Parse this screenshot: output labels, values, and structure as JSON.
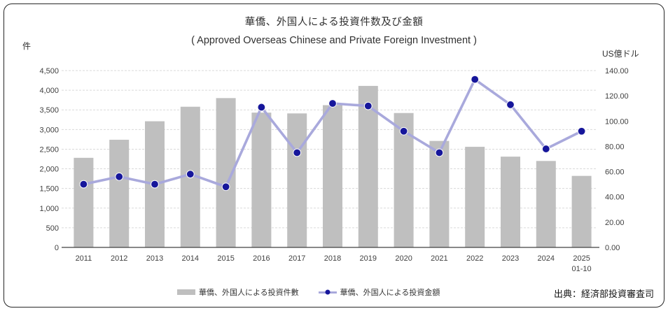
{
  "frame": {
    "title": "華僑、外国人による投資件数及び金額",
    "subtitle": "( Approved Overseas Chinese and Private Foreign Investment )",
    "left_axis_unit": "件",
    "right_axis_unit": "US億ドル",
    "source": "出典：経済部投資審査司"
  },
  "legend": {
    "bars_label": "華僑、外国人による投資件數",
    "line_label": "華僑、外国人による投資金額"
  },
  "colors": {
    "bar": "#BFBFBF",
    "line": "#A9A9DC",
    "marker": "#16169B",
    "marker_halo": "#FAFAFA",
    "grid": "#D9D9D9",
    "axis": "#404040",
    "tick_text": "#404040"
  },
  "chart_data": {
    "type": "bar",
    "subtype": "bar-line combo, dual axis",
    "title": "華僑、外国人による投資件数及び金額",
    "subtitle": "( Approved Overseas Chinese and Private Foreign Investment )",
    "categories": [
      "2011",
      "2012",
      "2013",
      "2014",
      "2015",
      "2016",
      "2017",
      "2018",
      "2019",
      "2020",
      "2021",
      "2022",
      "2023",
      "2024",
      "2025\n01-10"
    ],
    "series": [
      {
        "name": "華僑、外国人による投資件數",
        "type": "bar",
        "axis": "left",
        "values": [
          2280,
          2740,
          3210,
          3580,
          3800,
          3430,
          3410,
          3620,
          4110,
          3420,
          2710,
          2560,
          2310,
          2200,
          1820
        ]
      },
      {
        "name": "華僑、外国人による投資金額",
        "type": "line",
        "axis": "right",
        "values": [
          50,
          56,
          50,
          58,
          48,
          111,
          75,
          114,
          112,
          92,
          75,
          133,
          113,
          78,
          92
        ]
      }
    ],
    "left_axis": {
      "label": "件",
      "min": 0,
      "max": 4500,
      "step": 500,
      "format": "thousands-comma"
    },
    "right_axis": {
      "label": "US億ドル",
      "min": 0,
      "max": 140,
      "step": 20,
      "format": "two-decimals"
    },
    "grid": true,
    "grid_style": "dashed",
    "legend_position": "bottom",
    "source": "出典：経済部投資審査司"
  }
}
